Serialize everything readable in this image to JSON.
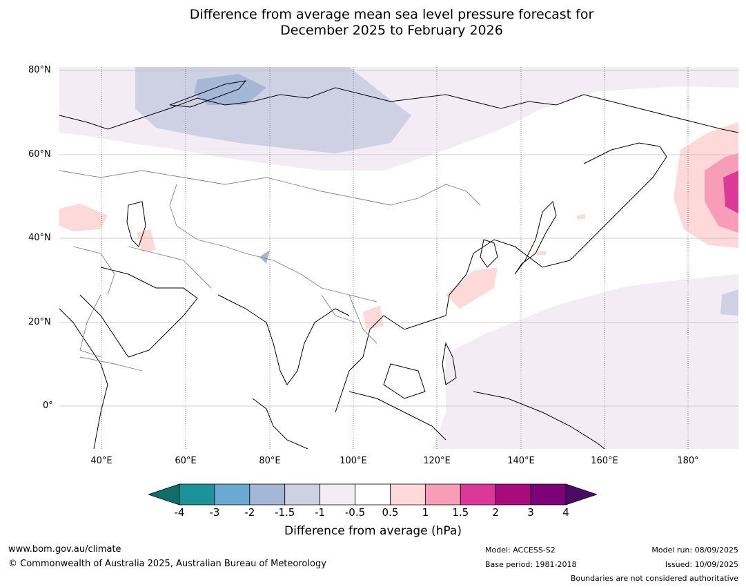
{
  "title": {
    "line1": "Difference from average mean sea level pressure forecast for",
    "line2": "December 2025 to February 2026"
  },
  "map": {
    "latitude_labels": [
      "80°N",
      "60°N",
      "40°N",
      "20°N",
      "0°"
    ],
    "longitude_labels": [
      "40°E",
      "60°E",
      "80°E",
      "100°E",
      "120°E",
      "140°E",
      "160°E",
      "180°"
    ],
    "extent": {
      "lon": [
        30,
        192
      ],
      "lat": [
        -10,
        81
      ]
    },
    "features": [
      "coastlines",
      "country-borders",
      "graticule"
    ]
  },
  "legend": {
    "ticks": [
      "-4",
      "-3",
      "-2",
      "-1.5",
      "-1",
      "-0.5",
      "0.5",
      "1",
      "1.5",
      "2",
      "3",
      "4"
    ],
    "colors": [
      "#0f6e69",
      "#1c9299",
      "#6aaad2",
      "#a4b7d6",
      "#ced1e3",
      "#f3ecf5",
      "#ffffff",
      "#fdd9da",
      "#f79db8",
      "#dc3899",
      "#a90a7e",
      "#7d0278",
      "#4a0a63"
    ],
    "label": "Difference from average (hPa)"
  },
  "footer": {
    "website": "www.bom.gov.au/climate",
    "copyright": "© Commonwealth of Australia 2025, Australian Bureau of Meteorology",
    "model": "Model: ACCESS-S2",
    "base_period": "Base period: 1981-2018",
    "model_run": "Model run: 08/09/2025",
    "issued": "Issued: 10/09/2025",
    "disclaimer": "Boundaries are not considered authoritative"
  }
}
